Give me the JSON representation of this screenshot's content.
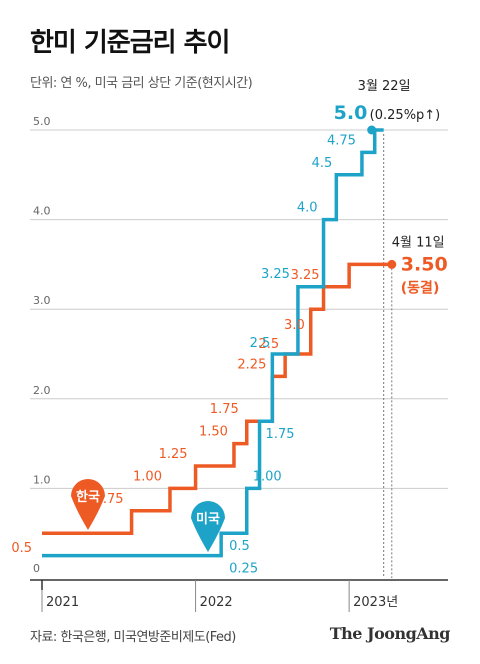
{
  "title": "한미 기준금리 추이",
  "subtitle": "단위: 연 %, 미국 금리 상단 기준(현지시간)",
  "source": "자료: 한국은행, 미국연방준비제도(Fed)",
  "logo": "The JoongAng",
  "colors": {
    "korea": "#ee5a24",
    "us": "#1ea3c8",
    "axis": "#333333",
    "grid": "#cccccc"
  },
  "chart_data": {
    "type": "line",
    "step": true,
    "ylim": [
      0,
      5.0
    ],
    "y_ticks": [
      "0",
      "1.0",
      "2.0",
      "3.0",
      "4.0",
      "5.0"
    ],
    "x_ticks": [
      "2021",
      "2022",
      "2023년"
    ],
    "grid": true,
    "series": [
      {
        "name": "한국",
        "key": "korea",
        "steps": [
          {
            "x": "2021-01",
            "y": 0.5,
            "label": "0.5"
          },
          {
            "x": "2021-08",
            "y": 0.75,
            "label": "0.75"
          },
          {
            "x": "2021-11",
            "y": 1.0,
            "label": "1.00"
          },
          {
            "x": "2022-01",
            "y": 1.25,
            "label": "1.25"
          },
          {
            "x": "2022-04",
            "y": 1.5,
            "label": "1.50"
          },
          {
            "x": "2022-05",
            "y": 1.75,
            "label": "1.75"
          },
          {
            "x": "2022-07",
            "y": 2.25,
            "label": "2.25"
          },
          {
            "x": "2022-08",
            "y": 2.5,
            "label": "2.5"
          },
          {
            "x": "2022-10",
            "y": 3.0,
            "label": "3.0"
          },
          {
            "x": "2022-11",
            "y": 3.25,
            "label": "3.25"
          },
          {
            "x": "2023-01",
            "y": 3.5,
            "label": ""
          }
        ],
        "end": {
          "x": "2023-04-11",
          "y": 3.5,
          "date_label": "4월 11일",
          "value_label": "3.50",
          "note": "(동결)"
        }
      },
      {
        "name": "미국",
        "key": "us",
        "steps": [
          {
            "x": "2021-01",
            "y": 0.25,
            "label": ""
          },
          {
            "x": "2022-03",
            "y": 0.5,
            "label": "0.5"
          },
          {
            "x": "2022-05",
            "y": 1.0,
            "label": "1.00"
          },
          {
            "x": "2022-06",
            "y": 1.75,
            "label": "1.75"
          },
          {
            "x": "2022-07",
            "y": 2.5,
            "label": "2.5"
          },
          {
            "x": "2022-09",
            "y": 3.25,
            "label": "3.25"
          },
          {
            "x": "2022-11",
            "y": 4.0,
            "label": "4.0"
          },
          {
            "x": "2022-12",
            "y": 4.5,
            "label": "4.5"
          },
          {
            "x": "2023-02",
            "y": 4.75,
            "label": "4.75"
          },
          {
            "x": "2023-03",
            "y": 5.0,
            "label": ""
          }
        ],
        "extra_labels": [
          {
            "x": "2022-03",
            "y": 0.25,
            "label": "0.25"
          }
        ],
        "end": {
          "x": "2023-03-22",
          "y": 5.0,
          "date_label": "3월 22일",
          "value_label": "5.0",
          "note": "(0.25%p↑)"
        }
      }
    ],
    "markers": [
      {
        "series": "korea",
        "text": "한국"
      },
      {
        "series": "us",
        "text": "미국"
      }
    ]
  }
}
